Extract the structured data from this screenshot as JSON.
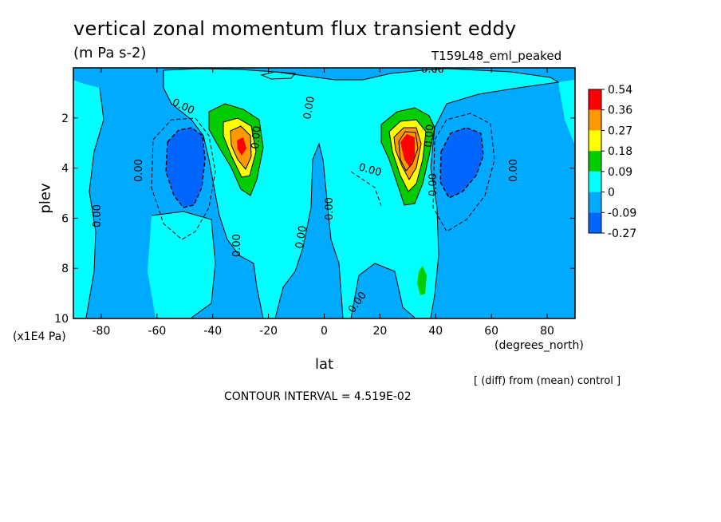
{
  "title": "vertical zonal momentum flux transient eddy",
  "units": "(m Pa s-2)",
  "experiment": "T159L48_eml_peaked",
  "x_axis_label": "lat",
  "x_axis_units": "(degrees_north)",
  "y_axis_label": "plev",
  "y_axis_units": "(x1E4 Pa)",
  "diff_note": "[ (diff) from (mean) control ]",
  "contour_interval": "CONTOUR INTERVAL = 4.519E-02",
  "colors": {
    "level_0.54": "#ff0000",
    "level_0.36": "#ff9900",
    "level_0.27": "#ffff00",
    "level_0.18": "#00cc00",
    "level_0.09": "#00ffff",
    "level_0": "#00aaff",
    "level_-0.09": "#0066ff",
    "background": "#00ffff"
  },
  "chart_data": {
    "type": "heatmap",
    "title": "vertical zonal momentum flux transient eddy",
    "xlabel": "lat",
    "ylabel": "plev",
    "xlim": [
      -90,
      90
    ],
    "ylim": [
      10,
      0
    ],
    "x_ticks": [
      -80,
      -60,
      -40,
      -20,
      0,
      20,
      40,
      60,
      80
    ],
    "y_ticks": [
      2,
      4,
      6,
      8,
      10
    ],
    "colorbar_levels": [
      "0.54",
      "0.36",
      "0.27",
      "0.18",
      "0.09",
      "0",
      "-0.09",
      "-0.27"
    ],
    "contour_labels": [
      "0.00",
      "0.00",
      "0.00",
      "0.00",
      "0.00",
      "0.00",
      "0.00",
      "0.00",
      "0.00",
      "0.00",
      "0.00",
      "0.00",
      "0.00",
      "0.00"
    ],
    "features": [
      {
        "kind": "max",
        "lat": 30,
        "plev": 3.2,
        "value": 0.54
      },
      {
        "kind": "max",
        "lat": -30,
        "plev": 3.0,
        "value": 0.36
      },
      {
        "kind": "min",
        "lat": -52,
        "plev": 4.0,
        "value": -0.09
      },
      {
        "kind": "min",
        "lat": 50,
        "plev": 3.8,
        "value": -0.09
      },
      {
        "kind": "max",
        "lat": 36,
        "plev": 8.5,
        "value": 0.09
      }
    ]
  }
}
